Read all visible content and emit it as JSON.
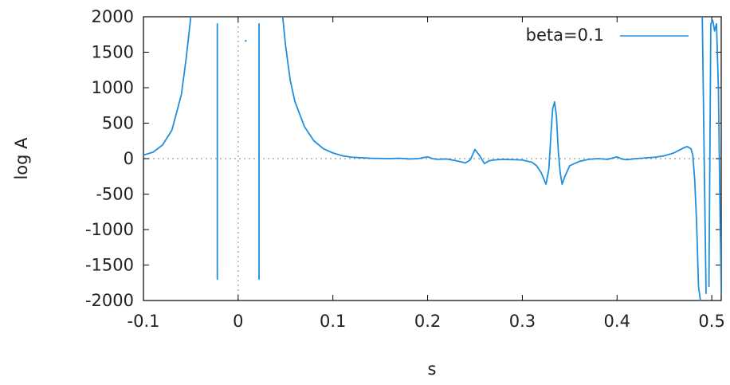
{
  "chart_data": {
    "type": "line",
    "title": "",
    "xlabel": "s",
    "ylabel": "log A",
    "xlim": [
      -0.1,
      0.51
    ],
    "ylim": [
      -2000,
      2000
    ],
    "xticks": [
      -0.1,
      0,
      0.1,
      0.2,
      0.3,
      0.4,
      0.5
    ],
    "xtick_labels": [
      "-0.1",
      "0",
      "0.1",
      "0.2",
      "0.3",
      "0.4",
      "0.5"
    ],
    "yticks": [
      -2000,
      -1500,
      -1000,
      -500,
      0,
      500,
      1000,
      1500,
      2000
    ],
    "ytick_labels": [
      "-2000",
      "-1500",
      "-1000",
      "-500",
      "0",
      "500",
      "1000",
      "1500",
      "2000"
    ],
    "zero_lines": {
      "x": 0,
      "y": 0
    },
    "grid": false,
    "legend_position": "top-right",
    "series": [
      {
        "name": "beta=0.1",
        "color": "#1f8fe0",
        "segments": [
          [
            [
              -0.1,
              50
            ],
            [
              -0.09,
              90
            ],
            [
              -0.08,
              190
            ],
            [
              -0.07,
              400
            ],
            [
              -0.06,
              900
            ],
            [
              -0.055,
              1400
            ],
            [
              -0.05,
              2000
            ]
          ],
          [
            [
              -0.022,
              1900
            ],
            [
              -0.022,
              -1700
            ]
          ],
          [
            [
              0.022,
              1900
            ],
            [
              0.022,
              -1700
            ]
          ],
          [
            [
              0.047,
              2000
            ],
            [
              0.05,
              1600
            ],
            [
              0.055,
              1100
            ],
            [
              0.06,
              800
            ],
            [
              0.07,
              450
            ],
            [
              0.08,
              250
            ],
            [
              0.09,
              140
            ],
            [
              0.1,
              80
            ],
            [
              0.11,
              40
            ],
            [
              0.12,
              20
            ],
            [
              0.14,
              5
            ],
            [
              0.16,
              0
            ],
            [
              0.17,
              5
            ],
            [
              0.18,
              -5
            ],
            [
              0.19,
              0
            ],
            [
              0.2,
              25
            ],
            [
              0.205,
              0
            ],
            [
              0.21,
              -10
            ],
            [
              0.22,
              -5
            ],
            [
              0.23,
              -30
            ],
            [
              0.24,
              -60
            ],
            [
              0.245,
              -20
            ],
            [
              0.25,
              130
            ],
            [
              0.255,
              40
            ],
            [
              0.26,
              -70
            ],
            [
              0.265,
              -30
            ],
            [
              0.27,
              -20
            ],
            [
              0.28,
              -10
            ],
            [
              0.3,
              -20
            ],
            [
              0.31,
              -50
            ],
            [
              0.315,
              -100
            ],
            [
              0.32,
              -200
            ],
            [
              0.325,
              -360
            ],
            [
              0.328,
              -150
            ],
            [
              0.33,
              300
            ],
            [
              0.332,
              700
            ],
            [
              0.334,
              800
            ],
            [
              0.336,
              600
            ],
            [
              0.338,
              100
            ],
            [
              0.34,
              -200
            ],
            [
              0.342,
              -360
            ],
            [
              0.345,
              -250
            ],
            [
              0.35,
              -100
            ],
            [
              0.36,
              -40
            ],
            [
              0.37,
              -10
            ],
            [
              0.38,
              0
            ],
            [
              0.39,
              -10
            ],
            [
              0.4,
              25
            ],
            [
              0.405,
              -5
            ],
            [
              0.41,
              -15
            ],
            [
              0.42,
              0
            ],
            [
              0.43,
              10
            ],
            [
              0.44,
              20
            ],
            [
              0.45,
              40
            ],
            [
              0.46,
              80
            ],
            [
              0.47,
              150
            ],
            [
              0.474,
              170
            ],
            [
              0.478,
              140
            ],
            [
              0.48,
              50
            ],
            [
              0.482,
              -300
            ],
            [
              0.484,
              -900
            ],
            [
              0.486,
              -1800
            ],
            [
              0.488,
              -2000
            ]
          ],
          [
            [
              0.49,
              2000
            ],
            [
              0.492,
              0
            ],
            [
              0.494,
              -1900
            ]
          ],
          [
            [
              0.497,
              -1800
            ],
            [
              0.498,
              0
            ],
            [
              0.499,
              1900
            ],
            [
              0.501,
              1950
            ],
            [
              0.503,
              1800
            ],
            [
              0.505,
              1900
            ],
            [
              0.507,
              1000
            ],
            [
              0.509,
              -1000
            ],
            [
              0.51,
              -1900
            ]
          ]
        ],
        "points": [
          [
            0.008,
            1660
          ]
        ]
      }
    ]
  }
}
